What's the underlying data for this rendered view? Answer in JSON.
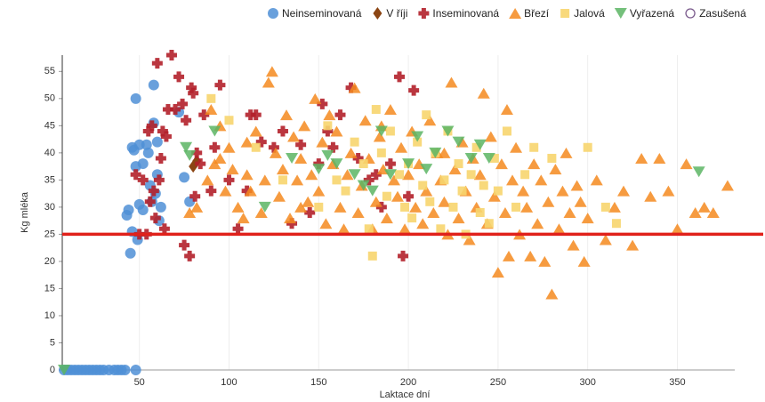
{
  "chart_data": {
    "type": "scatter",
    "x_label": "Laktace dní",
    "y_label": "Kg mléka",
    "xlim": [
      7,
      382
    ],
    "ylim": [
      0,
      58
    ],
    "xticks": [
      50,
      100,
      150,
      200,
      250,
      300,
      350
    ],
    "yticks": [
      0,
      5,
      10,
      15,
      20,
      25,
      30,
      35,
      40,
      45,
      50,
      55
    ],
    "grid": true,
    "reference_line": {
      "value": 25,
      "color": "#e0211b"
    },
    "series": [
      {
        "name": "Neinseminovaná",
        "color": "#4f8fd6",
        "marker": "circle",
        "x": [
          8,
          10,
          12,
          14,
          16,
          18,
          20,
          22,
          24,
          26,
          28,
          30,
          33,
          36,
          38,
          40,
          42,
          48,
          43,
          44,
          45,
          46,
          46,
          47,
          48,
          48,
          49,
          50,
          50,
          52,
          52,
          54,
          55,
          56,
          57,
          58,
          58,
          59,
          60,
          60,
          61,
          62,
          75,
          78,
          72
        ],
        "values": [
          0,
          0,
          0,
          0,
          0,
          0,
          0,
          0,
          0,
          0,
          0,
          0,
          0,
          0,
          0,
          0,
          0,
          0,
          28.5,
          29.5,
          21.5,
          25.5,
          41,
          40.5,
          37.5,
          50,
          24,
          30.5,
          41.5,
          29.5,
          38,
          41.5,
          40,
          34,
          31,
          52.5,
          45.5,
          32.5,
          36,
          42,
          27.5,
          30,
          35.5,
          31,
          47.5
        ]
      },
      {
        "name": "V říji",
        "color": "#8b4513",
        "marker": "diamond",
        "x": [
          80,
          82
        ],
        "values": [
          37.5,
          38.5
        ]
      },
      {
        "name": "Inseminovaná",
        "color": "#b3202a",
        "marker": "cross",
        "x": [
          48,
          50,
          52,
          54,
          55,
          56,
          57,
          58,
          59,
          60,
          61,
          62,
          63,
          64,
          65,
          66,
          68,
          70,
          72,
          74,
          75,
          76,
          78,
          79,
          80,
          81,
          82,
          84,
          86,
          90,
          92,
          95,
          100,
          105,
          110,
          112,
          115,
          118,
          125,
          130,
          135,
          140,
          145,
          150,
          152,
          155,
          158,
          162,
          168,
          172,
          178,
          185,
          190,
          195,
          197,
          200,
          203,
          182
        ],
        "values": [
          36,
          25,
          35,
          25,
          44,
          31,
          45,
          33,
          28,
          56.5,
          35,
          39,
          44,
          26,
          43,
          48,
          58,
          48,
          54,
          49,
          23,
          46,
          21,
          52,
          51,
          32,
          40,
          38,
          47,
          33,
          41,
          52.5,
          35,
          26,
          33,
          47,
          47,
          42,
          41,
          44,
          27,
          41.5,
          29,
          38,
          49,
          44,
          41,
          47,
          52,
          39,
          35,
          30,
          38,
          54,
          21,
          32,
          51.5,
          36
        ]
      },
      {
        "name": "Březí",
        "color": "#f5891f",
        "marker": "triangle",
        "x": [
          78,
          82,
          88,
          90,
          92,
          95,
          98,
          100,
          102,
          105,
          108,
          110,
          112,
          115,
          118,
          120,
          122,
          124,
          126,
          128,
          130,
          132,
          134,
          136,
          138,
          140,
          142,
          144,
          146,
          148,
          150,
          152,
          154,
          156,
          158,
          160,
          162,
          164,
          166,
          168,
          170,
          172,
          174,
          176,
          178,
          180,
          182,
          184,
          186,
          188,
          190,
          192,
          194,
          196,
          198,
          200,
          202,
          204,
          206,
          208,
          210,
          212,
          214,
          216,
          218,
          220,
          222,
          224,
          226,
          228,
          230,
          232,
          234,
          236,
          238,
          240,
          242,
          244,
          246,
          248,
          250,
          252,
          254,
          256,
          258,
          260,
          262,
          264,
          266,
          268,
          270,
          272,
          274,
          276,
          278,
          280,
          282,
          284,
          286,
          288,
          290,
          292,
          294,
          296,
          298,
          300,
          305,
          310,
          315,
          320,
          325,
          330,
          335,
          340,
          345,
          350,
          355,
          360,
          365,
          370,
          378,
          255,
          220,
          185,
          140,
          110,
          95
        ],
        "values": [
          29,
          30,
          35,
          48,
          38,
          45,
          33,
          41,
          37,
          30,
          28,
          36,
          33,
          44,
          29,
          35,
          53,
          55,
          40,
          32,
          37,
          47,
          28,
          43,
          35,
          39,
          45,
          31,
          36,
          50,
          33,
          42,
          27,
          47,
          38,
          44,
          30,
          26,
          36,
          40,
          52,
          29,
          34,
          46,
          39,
          26,
          31,
          43,
          37,
          28,
          48,
          35,
          32,
          41,
          26,
          36,
          44,
          30,
          38,
          27,
          33,
          46,
          29,
          40,
          35,
          31,
          25,
          53,
          37,
          28,
          42,
          33,
          24,
          39,
          30,
          36,
          51,
          27,
          43,
          32,
          18,
          38,
          29,
          21,
          35,
          41,
          25,
          33,
          30,
          21,
          38,
          27,
          35,
          20,
          31,
          14,
          37,
          26,
          33,
          40,
          29,
          23,
          34,
          31,
          20,
          28,
          35,
          24,
          30,
          33,
          23,
          39,
          32,
          39,
          33,
          26,
          38,
          29,
          30,
          29,
          34,
          48,
          40,
          45,
          30,
          42,
          39
        ]
      },
      {
        "name": "Jalová",
        "color": "#f7d56e",
        "marker": "square",
        "x": [
          90,
          100,
          115,
          130,
          150,
          155,
          160,
          165,
          170,
          175,
          178,
          180,
          182,
          185,
          188,
          190,
          195,
          198,
          200,
          202,
          205,
          208,
          210,
          212,
          215,
          218,
          220,
          222,
          225,
          228,
          230,
          232,
          235,
          238,
          240,
          242,
          245,
          248,
          250,
          255,
          260,
          265,
          270,
          280,
          300,
          310,
          316
        ],
        "values": [
          50,
          46,
          41,
          35,
          30,
          45,
          35,
          33,
          42,
          38,
          26,
          21,
          48,
          40,
          32,
          44,
          36,
          30,
          38,
          28,
          42,
          34,
          47,
          31,
          40,
          26,
          35,
          44,
          30,
          38,
          33,
          25,
          36,
          41,
          29,
          34,
          27,
          39,
          33,
          44,
          30,
          36,
          41,
          39,
          41,
          30,
          27
        ]
      },
      {
        "name": "Vyřazená",
        "color": "#5cb564",
        "marker": "triangle-down",
        "x": [
          8,
          76,
          78,
          92,
          120,
          135,
          150,
          160,
          170,
          180,
          185,
          190,
          200,
          205,
          210,
          215,
          222,
          228,
          235,
          240,
          245,
          362,
          175,
          155
        ],
        "values": [
          0,
          41,
          39.5,
          44,
          30,
          39,
          37,
          38,
          36,
          33,
          44,
          36,
          38,
          43,
          37,
          40,
          44,
          42,
          39,
          41.5,
          39,
          36.5,
          34,
          39.5
        ]
      },
      {
        "name": "Zasušená",
        "color": "#7a5a8c",
        "marker": "circle-open",
        "x": [],
        "values": []
      }
    ]
  }
}
